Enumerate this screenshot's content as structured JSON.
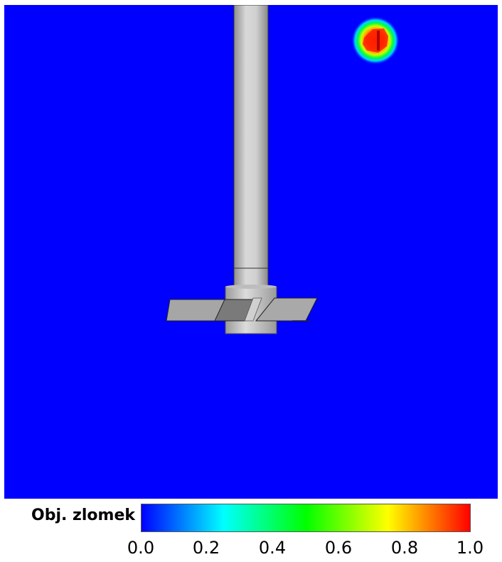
{
  "colorbar": {
    "title": "Obj. zlomek",
    "ticks": [
      "0.0",
      "0.2",
      "0.4",
      "0.6",
      "0.8",
      "1.0"
    ],
    "colors": [
      "#0000ff",
      "#00ffff",
      "#00ff00",
      "#ffff00",
      "#ff0000"
    ]
  },
  "field": {
    "background_color": "#0000ff",
    "shaft_color": "#c8c8c8",
    "blade_color": "#a8a8a8",
    "blob_core_color": "#ff2a00"
  }
}
